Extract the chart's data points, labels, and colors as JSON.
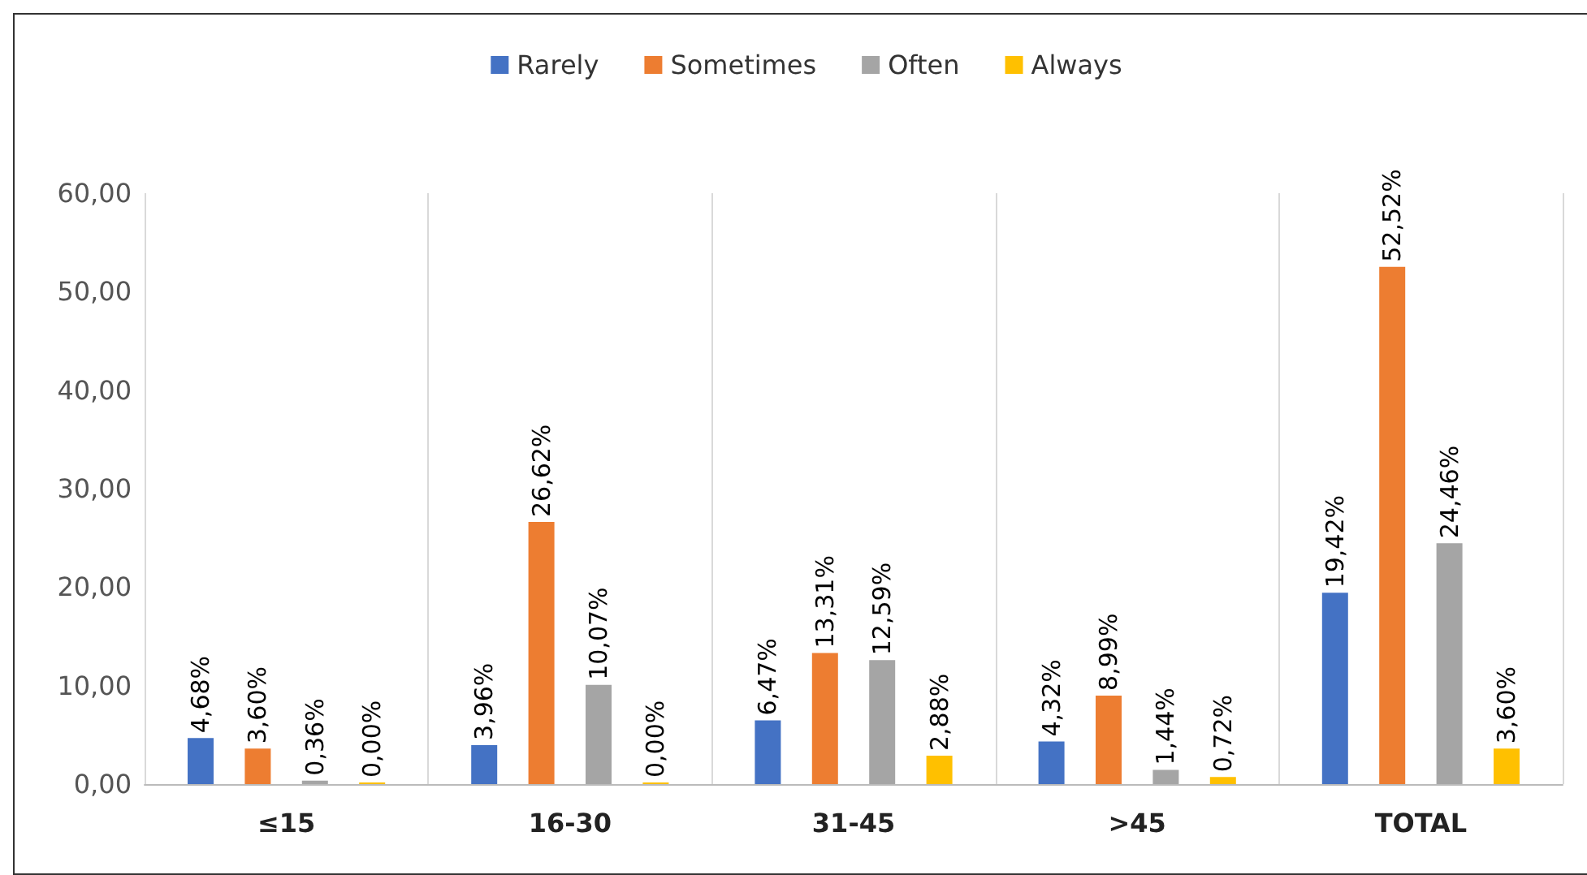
{
  "chart_data": {
    "type": "bar",
    "categories": [
      "≤15",
      "16-30",
      "31-45",
      ">45",
      "TOTAL"
    ],
    "series": [
      {
        "name": "Rarely",
        "color": "#4472c4",
        "values": [
          4.68,
          3.96,
          6.47,
          4.32,
          19.42
        ],
        "value_labels": [
          "4,68%",
          "3,96%",
          "6,47%",
          "4,32%",
          "19,42%"
        ]
      },
      {
        "name": "Sometimes",
        "color": "#ed7d31",
        "values": [
          3.6,
          26.62,
          13.31,
          8.99,
          52.52
        ],
        "value_labels": [
          "3,60%",
          "26,62%",
          "13,31%",
          "8,99%",
          "52,52%"
        ]
      },
      {
        "name": "Often",
        "color": "#a5a5a5",
        "values": [
          0.36,
          10.07,
          12.59,
          1.44,
          24.46
        ],
        "value_labels": [
          "0,36%",
          "10,07%",
          "12,59%",
          "1,44%",
          "24,46%"
        ]
      },
      {
        "name": "Always",
        "color": "#ffc000",
        "values": [
          0,
          0,
          2.88,
          0.72,
          3.6
        ],
        "value_labels": [
          "0,00%",
          "0,00%",
          "2,88%",
          "0,72%",
          "3,60%"
        ]
      }
    ],
    "ylim": [
      0,
      60
    ],
    "yticks": [
      {
        "value": 0,
        "label": "0,00"
      },
      {
        "value": 10,
        "label": "10,00"
      },
      {
        "value": 20,
        "label": "20,00"
      },
      {
        "value": 30,
        "label": "30,00"
      },
      {
        "value": 40,
        "label": "40,00"
      },
      {
        "value": 50,
        "label": "50,00"
      },
      {
        "value": 60,
        "label": "60,00"
      }
    ],
    "grid": "x",
    "legend": "top"
  }
}
